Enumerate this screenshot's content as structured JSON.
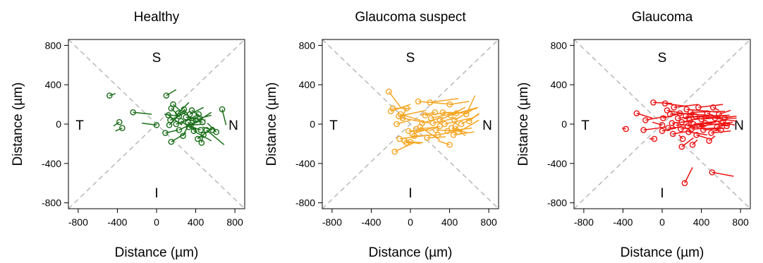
{
  "chart_data": [
    {
      "type": "scatter",
      "title": "Healthy",
      "xlabel": "Distance (µm)",
      "ylabel": "Distance (µm)",
      "xlim": [
        -900,
        900
      ],
      "ylim": [
        -860,
        860
      ],
      "xticks": [
        -800,
        -400,
        0,
        400,
        800
      ],
      "yticks": [
        -800,
        -400,
        0,
        400,
        800
      ],
      "quadrant_labels": {
        "top": "S",
        "bottom": "I",
        "left": "T",
        "right": "N"
      },
      "diagonals": "dashed",
      "color": "#1a6e1a",
      "series": [
        {
          "points": [
            [
              -480,
              290,
              -420,
              310
            ],
            [
              -380,
              20,
              -440,
              -20
            ],
            [
              -350,
              -40,
              -420,
              -70
            ],
            [
              -240,
              120,
              -50,
              100
            ],
            [
              0,
              -10,
              -150,
              10
            ],
            [
              100,
              290,
              200,
              350
            ],
            [
              130,
              -10,
              290,
              150
            ],
            [
              90,
              -90,
              220,
              -60
            ],
            [
              150,
              -180,
              300,
              -90
            ],
            [
              120,
              90,
              260,
              -10
            ],
            [
              140,
              40,
              300,
              120
            ],
            [
              150,
              160,
              240,
              70
            ],
            [
              170,
              200,
              250,
              130
            ],
            [
              200,
              0,
              360,
              60
            ],
            [
              220,
              110,
              330,
              220
            ],
            [
              230,
              -60,
              420,
              30
            ],
            [
              250,
              30,
              380,
              -60
            ],
            [
              270,
              -120,
              330,
              0
            ],
            [
              280,
              150,
              360,
              40
            ],
            [
              300,
              70,
              500,
              40
            ],
            [
              320,
              20,
              410,
              -80
            ],
            [
              330,
              -30,
              560,
              120
            ],
            [
              340,
              100,
              480,
              170
            ],
            [
              350,
              -10,
              490,
              0
            ],
            [
              360,
              140,
              440,
              80
            ],
            [
              380,
              -70,
              560,
              -170
            ],
            [
              400,
              40,
              260,
              120
            ],
            [
              420,
              -150,
              580,
              -30
            ],
            [
              430,
              100,
              300,
              30
            ],
            [
              440,
              60,
              560,
              90
            ],
            [
              450,
              -60,
              340,
              -20
            ],
            [
              460,
              -190,
              470,
              -110
            ],
            [
              470,
              20,
              330,
              40
            ],
            [
              480,
              -110,
              420,
              -140
            ],
            [
              570,
              -60,
              470,
              -30
            ],
            [
              610,
              -80,
              520,
              10
            ],
            [
              670,
              150,
              710,
              -10
            ],
            [
              510,
              -60,
              690,
              -210
            ],
            [
              230,
              80,
              80,
              100
            ]
          ]
        }
      ]
    },
    {
      "type": "scatter",
      "title": "Glaucoma suspect",
      "xlabel": "Distance (µm)",
      "ylabel": "Distance (µm)",
      "xlim": [
        -900,
        900
      ],
      "ylim": [
        -860,
        860
      ],
      "xticks": [
        -800,
        -400,
        0,
        400,
        800
      ],
      "yticks": [
        -800,
        -400,
        0,
        400,
        800
      ],
      "quadrant_labels": {
        "top": "S",
        "bottom": "I",
        "left": "T",
        "right": "N"
      },
      "diagonals": "dashed",
      "color": "#f5a623",
      "series": [
        {
          "points": [
            [
              -220,
              330,
              -100,
              170
            ],
            [
              -200,
              130,
              0,
              200
            ],
            [
              -180,
              160,
              10,
              160
            ],
            [
              -160,
              -280,
              30,
              -190
            ],
            [
              -140,
              0,
              0,
              40
            ],
            [
              -120,
              80,
              160,
              140
            ],
            [
              -110,
              -150,
              120,
              -120
            ],
            [
              -100,
              100,
              100,
              40
            ],
            [
              -80,
              60,
              200,
              10
            ],
            [
              -60,
              -170,
              100,
              -200
            ],
            [
              -40,
              -190,
              110,
              -190
            ],
            [
              -20,
              -70,
              180,
              -60
            ],
            [
              0,
              -180,
              130,
              -190
            ],
            [
              20,
              -100,
              250,
              -30
            ],
            [
              40,
              -120,
              280,
              -110
            ],
            [
              60,
              -50,
              280,
              -30
            ],
            [
              80,
              230,
              440,
              200
            ],
            [
              100,
              -30,
              300,
              -160
            ],
            [
              120,
              10,
              330,
              70
            ],
            [
              150,
              90,
              420,
              120
            ],
            [
              170,
              -140,
              360,
              -130
            ],
            [
              200,
              220,
              490,
              260
            ],
            [
              210,
              60,
              490,
              120
            ],
            [
              230,
              10,
              460,
              60
            ],
            [
              260,
              -60,
              500,
              -70
            ],
            [
              280,
              -110,
              520,
              -60
            ],
            [
              300,
              40,
              560,
              170
            ],
            [
              330,
              120,
              600,
              110
            ],
            [
              350,
              0,
              620,
              60
            ],
            [
              380,
              -70,
              630,
              -40
            ],
            [
              400,
              -210,
              280,
              -170
            ],
            [
              420,
              -40,
              590,
              -90
            ],
            [
              440,
              -110,
              650,
              -80
            ],
            [
              450,
              40,
              640,
              150
            ],
            [
              470,
              110,
              680,
              160
            ],
            [
              490,
              -80,
              700,
              40
            ],
            [
              520,
              0,
              700,
              100
            ],
            [
              570,
              100,
              660,
              290
            ],
            [
              600,
              30,
              700,
              110
            ],
            [
              400,
              200,
              600,
              230
            ],
            [
              410,
              90,
              690,
              170
            ],
            [
              460,
              -20,
              560,
              -120
            ],
            [
              300,
              -20,
              190,
              -70
            ],
            [
              250,
              120,
              100,
              90
            ],
            [
              -40,
              160,
              -100,
              40
            ]
          ]
        }
      ]
    },
    {
      "type": "scatter",
      "title": "Glaucoma",
      "xlabel": "Distance (µm)",
      "ylabel": "Distance (µm)",
      "xlim": [
        -900,
        900
      ],
      "ylim": [
        -860,
        860
      ],
      "xticks": [
        -800,
        -400,
        0,
        400,
        800
      ],
      "yticks": [
        -800,
        -400,
        0,
        400,
        800
      ],
      "quadrant_labels": {
        "top": "S",
        "bottom": "I",
        "left": "T",
        "right": "N"
      },
      "diagonals": "dashed",
      "color": "#ee1111",
      "series": [
        {
          "points": [
            [
              -370,
              -50,
              -410,
              -40
            ],
            [
              -260,
              110,
              -100,
              60
            ],
            [
              -190,
              -60,
              40,
              -30
            ],
            [
              -170,
              40,
              40,
              80
            ],
            [
              -90,
              220,
              100,
              210
            ],
            [
              -80,
              -150,
              -130,
              -150
            ],
            [
              0,
              -70,
              140,
              -40
            ],
            [
              10,
              60,
              190,
              110
            ],
            [
              30,
              210,
              250,
              180
            ],
            [
              50,
              140,
              310,
              90
            ],
            [
              60,
              -40,
              240,
              -30
            ],
            [
              80,
              100,
              330,
              110
            ],
            [
              100,
              10,
              320,
              30
            ],
            [
              110,
              -100,
              280,
              -70
            ],
            [
              120,
              170,
              370,
              200
            ],
            [
              140,
              -10,
              420,
              -10
            ],
            [
              160,
              60,
              410,
              80
            ],
            [
              180,
              110,
              470,
              90
            ],
            [
              190,
              -50,
              450,
              -20
            ],
            [
              200,
              20,
              380,
              60
            ],
            [
              210,
              -150,
              170,
              -110
            ],
            [
              230,
              -600,
              310,
              -440
            ],
            [
              240,
              80,
              520,
              70
            ],
            [
              250,
              150,
              580,
              120
            ],
            [
              260,
              -20,
              550,
              20
            ],
            [
              270,
              -80,
              460,
              -110
            ],
            [
              280,
              40,
              600,
              80
            ],
            [
              290,
              120,
              640,
              130
            ],
            [
              300,
              -50,
              580,
              -40
            ],
            [
              310,
              -210,
              360,
              -160
            ],
            [
              320,
              0,
              660,
              40
            ],
            [
              340,
              80,
              690,
              90
            ],
            [
              350,
              -110,
              480,
              -150
            ],
            [
              370,
              170,
              620,
              200
            ],
            [
              380,
              -20,
              720,
              20
            ],
            [
              400,
              50,
              760,
              80
            ],
            [
              420,
              -60,
              640,
              -40
            ],
            [
              440,
              10,
              680,
              -20
            ],
            [
              460,
              110,
              600,
              60
            ],
            [
              480,
              -170,
              540,
              -120
            ],
            [
              500,
              -90,
              700,
              -70
            ],
            [
              510,
              -490,
              730,
              -530
            ],
            [
              520,
              170,
              580,
              140
            ],
            [
              540,
              60,
              760,
              30
            ],
            [
              560,
              -30,
              700,
              0
            ],
            [
              580,
              100,
              700,
              140
            ],
            [
              600,
              -60,
              520,
              -70
            ],
            [
              620,
              20,
              740,
              -10
            ],
            [
              640,
              60,
              760,
              60
            ],
            [
              660,
              -20,
              560,
              30
            ],
            [
              200,
              -230,
              320,
              -140
            ],
            [
              0,
              -10,
              -100,
              20
            ]
          ]
        }
      ]
    }
  ]
}
